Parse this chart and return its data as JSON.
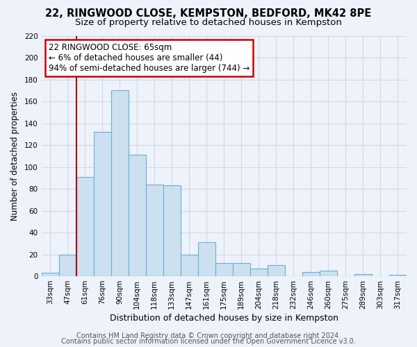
{
  "title1": "22, RINGWOOD CLOSE, KEMPSTON, BEDFORD, MK42 8PE",
  "title2": "Size of property relative to detached houses in Kempston",
  "xlabel": "Distribution of detached houses by size in Kempston",
  "ylabel": "Number of detached properties",
  "bar_labels": [
    "33sqm",
    "47sqm",
    "61sqm",
    "76sqm",
    "90sqm",
    "104sqm",
    "118sqm",
    "133sqm",
    "147sqm",
    "161sqm",
    "175sqm",
    "189sqm",
    "204sqm",
    "218sqm",
    "232sqm",
    "246sqm",
    "260sqm",
    "275sqm",
    "289sqm",
    "303sqm",
    "317sqm"
  ],
  "bar_values": [
    3,
    20,
    91,
    132,
    170,
    111,
    84,
    83,
    20,
    31,
    12,
    12,
    7,
    10,
    0,
    4,
    5,
    0,
    2,
    0,
    1
  ],
  "bar_color": "#cce0f0",
  "bar_edge_color": "#6baed6",
  "vline_x": 2,
  "vline_color": "#aa0000",
  "annotation_title": "22 RINGWOOD CLOSE: 65sqm",
  "annotation_line1": "← 6% of detached houses are smaller (44)",
  "annotation_line2": "94% of semi-detached houses are larger (744) →",
  "annotation_box_color": "#ffffff",
  "annotation_box_edge": "#cc0000",
  "ylim": [
    0,
    220
  ],
  "yticks": [
    0,
    20,
    40,
    60,
    80,
    100,
    120,
    140,
    160,
    180,
    200,
    220
  ],
  "footer1": "Contains HM Land Registry data © Crown copyright and database right 2024.",
  "footer2": "Contains public sector information licensed under the Open Government Licence v3.0.",
  "bg_color": "#eef2fa",
  "grid_color": "#d0d8e8",
  "title1_fontsize": 10.5,
  "title2_fontsize": 9.5,
  "xlabel_fontsize": 9,
  "ylabel_fontsize": 8.5,
  "tick_fontsize": 7.5,
  "footer_fontsize": 7,
  "ann_fontsize": 8.5
}
